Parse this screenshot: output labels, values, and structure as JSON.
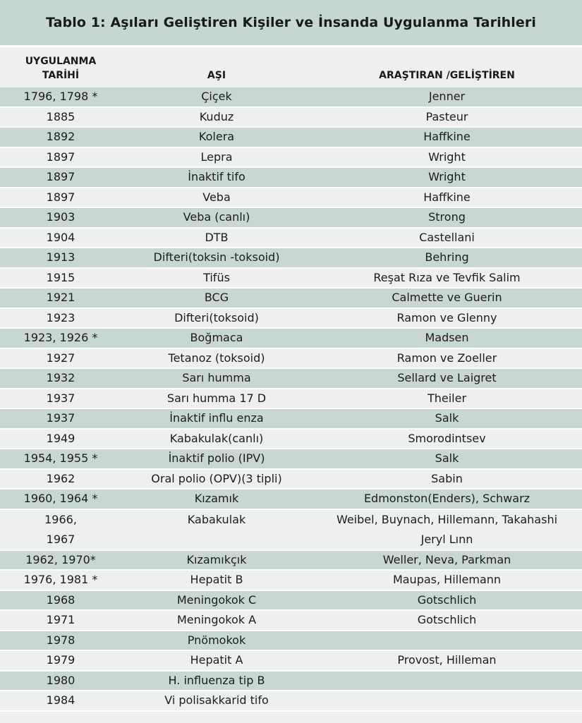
{
  "title": "Tablo 1: Aşıları Geliştiren Kişiler ve İnsanda Uygulanma Tarihleri",
  "headers": {
    "date_line1": "UYGULANMA",
    "date_line2": "TARİHİ",
    "vaccine": "AŞI",
    "developer": "ARAŞTIRAN /GELİŞTİREN"
  },
  "rows": [
    {
      "date": "1796, 1798 *",
      "vaccine": "Çiçek",
      "developer": "Jenner"
    },
    {
      "date": "1885",
      "vaccine": "Kuduz",
      "developer": "Pasteur"
    },
    {
      "date": "1892",
      "vaccine": "Kolera",
      "developer": "Haffkine"
    },
    {
      "date": "1897",
      "vaccine": "Lepra",
      "developer": "Wright"
    },
    {
      "date": "1897",
      "vaccine": "İnaktif tifo",
      "developer": "Wright"
    },
    {
      "date": "1897",
      "vaccine": "Veba",
      "developer": "Haffkine"
    },
    {
      "date": "1903",
      "vaccine": "Veba (canlı)",
      "developer": "Strong"
    },
    {
      "date": "1904",
      "vaccine": "DTB",
      "developer": "Castellani"
    },
    {
      "date": "1913",
      "vaccine": "Difteri(toksin -toksoid)",
      "developer": "Behring"
    },
    {
      "date": "1915",
      "vaccine": "Tifüs",
      "developer": "Reşat Rıza ve Tevfik Salim"
    },
    {
      "date": "1921",
      "vaccine": "BCG",
      "developer": "Calmette ve Guerin"
    },
    {
      "date": "1923",
      "vaccine": "Difteri(toksoid)",
      "developer": "Ramon ve Glenny"
    },
    {
      "date": "1923, 1926 *",
      "vaccine": "Boğmaca",
      "developer": "Madsen"
    },
    {
      "date": "1927",
      "vaccine": "Tetanoz (toksoid)",
      "developer": "Ramon ve Zoeller"
    },
    {
      "date": "1932",
      "vaccine": "Sarı humma",
      "developer": "Sellard ve Laigret"
    },
    {
      "date": "1937",
      "vaccine": "Sarı humma 17 D",
      "developer": "Theiler"
    },
    {
      "date": "1937",
      "vaccine": "İnaktif influ enza",
      "developer": "Salk"
    },
    {
      "date": "1949",
      "vaccine": "Kabakulak(canlı)",
      "developer": "Smorodintsev"
    },
    {
      "date": "1954, 1955 *",
      "vaccine": "İnaktif  polio (IPV)",
      "developer": "Salk"
    },
    {
      "date": "1962",
      "vaccine": "Oral polio (OPV)(3 tipli)",
      "developer": "Sabin"
    },
    {
      "date": "1960, 1964 *",
      "vaccine": "Kızamık",
      "developer": "Edmonston(Enders), Schwarz"
    },
    {
      "date": "1966,",
      "date2": "1967",
      "vaccine": "Kabakulak",
      "developer": "Weibel, Buynach, Hillemann, Takahashi",
      "developer2": "Jeryl Lınn"
    },
    {
      "date": "1962, 1970*",
      "vaccine": "Kızamıkçık",
      "developer": "Weller, Neva, Parkman"
    },
    {
      "date": "1976, 1981 *",
      "vaccine": "Hepatit B",
      "developer": "Maupas, Hillemann"
    },
    {
      "date": "1968",
      "vaccine": "Meningokok C",
      "developer": "Gotschlich"
    },
    {
      "date": "1971",
      "vaccine": "Meningokok A",
      "developer": "Gotschlich"
    },
    {
      "date": "1978",
      "vaccine": "Pnömokok",
      "developer": ""
    },
    {
      "date": "1979",
      "vaccine": "Hepatit A",
      "developer": "Provost, Hilleman"
    },
    {
      "date": "1980",
      "vaccine": "H. influenza tip B",
      "developer": ""
    },
    {
      "date": "1984",
      "vaccine": "Vi polisakkarid tifo",
      "developer": ""
    }
  ]
}
